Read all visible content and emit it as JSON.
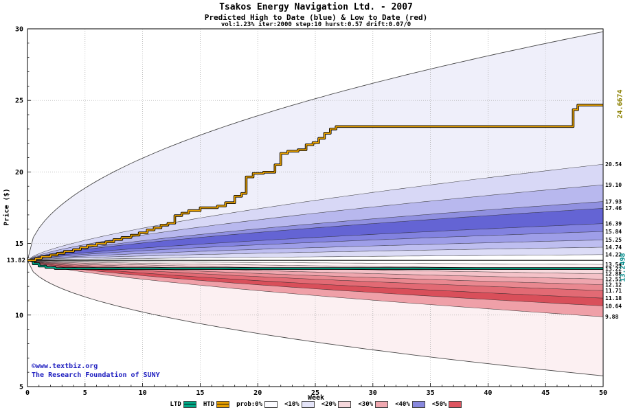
{
  "title": "Tsakos Energy Navigation Ltd. - 2007",
  "subtitle": "Predicted High to Date (blue) &  Low to Date (red)",
  "params": "vol:1.23% iter:2000 step:10 hurst:0.57 drift:0.07/0",
  "watermark": {
    "line1": "©www.textbiz.org",
    "line2": "The Research Foundation of SUNY",
    "color": "#2020C0"
  },
  "axes": {
    "x": {
      "label": "Week"
    },
    "y": {
      "label": "Price ($)"
    },
    "start_label": "13.82"
  },
  "annotations": {
    "high_final": {
      "text": "24.6674",
      "color": "#8B8000"
    },
    "low_final": {
      "text": "13.2498",
      "color": "#008B8B"
    }
  },
  "legend": {
    "items": [
      {
        "label": "LTD",
        "swatch": "line",
        "color": "#00AA88"
      },
      {
        "label": "HTD",
        "swatch": "line",
        "color": "#E8A000"
      },
      {
        "label": "prob:0%",
        "swatch": "box",
        "color": "#fbfbff"
      },
      {
        "label": "<10%",
        "swatch": "box",
        "color": "#e4e4f8"
      },
      {
        "label": "<20%",
        "swatch": "box",
        "color": "#f6d8dc"
      },
      {
        "label": "<30%",
        "swatch": "box",
        "color": "#f0a8b0"
      },
      {
        "label": "<40%",
        "swatch": "box",
        "color": "#8888dd"
      },
      {
        "label": "<50%",
        "swatch": "box",
        "color": "#dd5560"
      }
    ]
  },
  "chart_data": {
    "type": "area",
    "title": "Tsakos Energy Navigation Ltd. - 2007",
    "xlabel": "Week",
    "ylabel": "Price ($)",
    "x_range": [
      0,
      50
    ],
    "y_range": [
      5,
      30
    ],
    "x_ticks": [
      0,
      5,
      10,
      15,
      20,
      25,
      30,
      35,
      40,
      45,
      50
    ],
    "y_ticks": [
      5,
      10,
      15,
      20,
      25,
      30
    ],
    "start_price": 13.82,
    "fan": {
      "curve_exponent_bands": 0.68,
      "curve_exponent_envelope": 0.5,
      "upper_envelope_end": 29.8,
      "lower_envelope_end": 5.75,
      "upper_boundaries": [
        14.22,
        14.74,
        15.25,
        15.84,
        16.39,
        17.46,
        17.93,
        19.1,
        20.54
      ],
      "upper_band_colors": [
        "#ffffff",
        "#dcdcf6",
        "#bebef0",
        "#9e9ee8",
        "#8282e0",
        "#6464d4",
        "#9090e0",
        "#b8b8ee",
        "#d8d8f6",
        "#efeffa"
      ],
      "lower_boundaries": [
        13.54,
        13.22,
        12.88,
        12.51,
        12.12,
        11.71,
        11.18,
        10.64,
        9.88
      ],
      "lower_band_colors": [
        "#ffffff",
        "#fdf2f4",
        "#f8dade",
        "#f4c2c8",
        "#efa6ae",
        "#e98890",
        "#e26a74",
        "#d94f5a",
        "#efa0a8",
        "#fcf0f2"
      ]
    },
    "right_axis_labels": [
      "20.54",
      "19.10",
      "17.93",
      "17.46",
      "16.39",
      "15.84",
      "15.25",
      "14.74",
      "14.22",
      "13.54",
      "13.22",
      "12.88",
      "12.51",
      "12.12",
      "11.71",
      "11.18",
      "10.64",
      "9.88"
    ],
    "series": [
      {
        "name": "LTD",
        "type": "step",
        "color": "#00AA88",
        "outline": "#000000",
        "final_value": 13.2498,
        "points": [
          [
            0,
            13.82
          ],
          [
            0.5,
            13.58
          ],
          [
            1,
            13.42
          ],
          [
            1.6,
            13.32
          ],
          [
            2.4,
            13.2498
          ],
          [
            50,
            13.2498
          ]
        ]
      },
      {
        "name": "HTD",
        "type": "step",
        "color": "#E8A000",
        "outline": "#000000",
        "final_value": 24.6674,
        "points": [
          [
            0,
            13.82
          ],
          [
            0.7,
            13.95
          ],
          [
            1.2,
            14.08
          ],
          [
            2,
            14.2
          ],
          [
            2.6,
            14.32
          ],
          [
            3.2,
            14.45
          ],
          [
            4,
            14.58
          ],
          [
            4.6,
            14.72
          ],
          [
            5.2,
            14.85
          ],
          [
            6,
            15.0
          ],
          [
            6.8,
            15.12
          ],
          [
            7.5,
            15.28
          ],
          [
            8.2,
            15.42
          ],
          [
            9,
            15.58
          ],
          [
            9.7,
            15.75
          ],
          [
            10.4,
            15.95
          ],
          [
            11,
            16.1
          ],
          [
            11.6,
            16.28
          ],
          [
            12.2,
            16.42
          ],
          [
            12.8,
            16.95
          ],
          [
            13.4,
            17.12
          ],
          [
            14,
            17.3
          ],
          [
            15,
            17.5
          ],
          [
            16.5,
            17.62
          ],
          [
            17.2,
            17.85
          ],
          [
            18,
            18.3
          ],
          [
            18.6,
            18.5
          ],
          [
            19,
            19.65
          ],
          [
            19.6,
            19.9
          ],
          [
            20.5,
            19.98
          ],
          [
            21.5,
            20.5
          ],
          [
            22,
            21.3
          ],
          [
            22.6,
            21.45
          ],
          [
            23.5,
            21.55
          ],
          [
            24.2,
            21.9
          ],
          [
            24.8,
            22.05
          ],
          [
            25.3,
            22.35
          ],
          [
            25.8,
            22.7
          ],
          [
            26.3,
            23.0
          ],
          [
            26.8,
            23.17
          ],
          [
            47,
            23.17
          ],
          [
            47.4,
            24.35
          ],
          [
            47.8,
            24.6674
          ],
          [
            50,
            24.6674
          ]
        ]
      }
    ]
  }
}
